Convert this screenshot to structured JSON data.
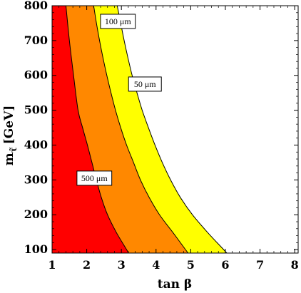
{
  "chart_data": {
    "type": "area",
    "title": "",
    "xlabel": "tan β",
    "ylabel": "m_τ̃ [GeV]",
    "ylabel_main": "m",
    "ylabel_sub": "τ̃",
    "ylabel_unit": "[GeV]",
    "xlim": [
      1,
      8.1
    ],
    "ylim": [
      90,
      800
    ],
    "x_ticks": [
      "1",
      "2",
      "3",
      "4",
      "5",
      "6",
      "7",
      "8"
    ],
    "y_ticks": [
      "100",
      "200",
      "300",
      "400",
      "500",
      "600",
      "700",
      "800"
    ],
    "grid": false,
    "legend": "none",
    "regions": [
      {
        "label": "500 μm",
        "color": "#ff0000",
        "between": [
          "tanb=1",
          "contour_500um"
        ]
      },
      {
        "label": "100 μm",
        "color": "#ff8800",
        "between": [
          "contour_500um",
          "contour_100um"
        ]
      },
      {
        "label": "50 μm",
        "color": "#ffff00",
        "between": [
          "contour_100um",
          "contour_50um"
        ]
      },
      {
        "label": "",
        "color": "#ffffff",
        "between": [
          "contour_50um",
          "tanb=8.1"
        ]
      }
    ],
    "series": [
      {
        "name": "500 μm",
        "x": [
          3.15,
          2.85,
          2.6,
          2.42,
          2.28,
          2.15,
          2.02,
          1.88,
          1.75,
          1.62,
          1.5,
          1.4
        ],
        "y": [
          100,
          150,
          200,
          250,
          300,
          350,
          400,
          450,
          500,
          600,
          700,
          800
        ]
      },
      {
        "name": "100 μm",
        "x": [
          4.85,
          4.48,
          4.1,
          3.8,
          3.55,
          3.35,
          3.15,
          2.98,
          2.83,
          2.7,
          2.58,
          2.47,
          2.37,
          2.28,
          2.2
        ],
        "y": [
          100,
          150,
          200,
          250,
          300,
          350,
          400,
          450,
          500,
          550,
          600,
          650,
          700,
          750,
          800
        ]
      },
      {
        "name": "50 μm",
        "x": [
          5.95,
          5.48,
          5.05,
          4.7,
          4.42,
          4.18,
          3.97,
          3.78,
          3.6,
          3.45,
          3.31,
          3.19,
          3.08,
          2.98,
          2.88
        ],
        "y": [
          100,
          150,
          200,
          250,
          300,
          350,
          400,
          450,
          500,
          550,
          600,
          650,
          700,
          750,
          800
        ]
      }
    ],
    "annotations": [
      {
        "text": "100 μm",
        "x": 2.9,
        "y": 755
      },
      {
        "text": "50 μm",
        "x": 3.68,
        "y": 575
      },
      {
        "text": "500 μm",
        "x": 2.22,
        "y": 305
      }
    ]
  }
}
